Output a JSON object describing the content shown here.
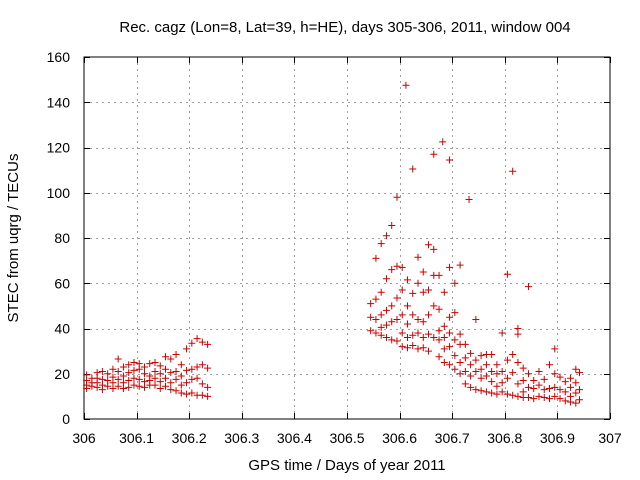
{
  "chart_data": {
    "type": "scatter",
    "title": "Rec. cagz (Lon=8, Lat=39, h=HE), days 305-306, 2011, window 004",
    "xlabel": "GPS time / Days of year 2011",
    "ylabel": "STEC from uqrg / TECUs",
    "xlim": [
      306,
      307
    ],
    "ylim": [
      0,
      160
    ],
    "xticks": [
      306,
      306.1,
      306.2,
      306.3,
      306.4,
      306.5,
      306.6,
      306.7,
      306.8,
      306.9,
      307
    ],
    "xtick_labels": [
      "306",
      "306.1",
      "306.2",
      "306.3",
      "306.4",
      "306.5",
      "306.6",
      "306.7",
      "306.8",
      "306.9",
      "307"
    ],
    "yticks": [
      0,
      20,
      40,
      60,
      80,
      100,
      120,
      140,
      160
    ],
    "ytick_labels": [
      "0",
      "20",
      "40",
      "60",
      "80",
      "100",
      "120",
      "140",
      "160"
    ],
    "grid": true,
    "marker": "plus",
    "color": "#cc0000",
    "series": [
      {
        "name": "STEC",
        "points": [
          [
            306.005,
            19.5
          ],
          [
            306.005,
            17.0
          ],
          [
            306.005,
            15.0
          ],
          [
            306.005,
            13.5
          ],
          [
            306.015,
            18.0
          ],
          [
            306.015,
            16.0
          ],
          [
            306.015,
            14.5
          ],
          [
            306.025,
            20.5
          ],
          [
            306.025,
            18.0
          ],
          [
            306.025,
            16.0
          ],
          [
            306.025,
            14.0
          ],
          [
            306.035,
            21.0
          ],
          [
            306.035,
            17.5
          ],
          [
            306.035,
            15.0
          ],
          [
            306.035,
            13.0
          ],
          [
            306.045,
            20.0
          ],
          [
            306.045,
            17.0
          ],
          [
            306.045,
            14.5
          ],
          [
            306.055,
            22.0
          ],
          [
            306.055,
            18.5
          ],
          [
            306.055,
            16.0
          ],
          [
            306.055,
            13.5
          ],
          [
            306.065,
            26.5
          ],
          [
            306.065,
            21.0
          ],
          [
            306.065,
            17.5
          ],
          [
            306.065,
            14.5
          ],
          [
            306.075,
            23.0
          ],
          [
            306.075,
            19.0
          ],
          [
            306.075,
            16.0
          ],
          [
            306.075,
            13.5
          ],
          [
            306.085,
            24.0
          ],
          [
            306.085,
            20.5
          ],
          [
            306.085,
            17.0
          ],
          [
            306.085,
            14.0
          ],
          [
            306.095,
            25.0
          ],
          [
            306.095,
            21.5
          ],
          [
            306.095,
            18.0
          ],
          [
            306.095,
            15.0
          ],
          [
            306.105,
            24.5
          ],
          [
            306.105,
            22.0
          ],
          [
            306.105,
            17.5
          ],
          [
            306.105,
            14.5
          ],
          [
            306.115,
            23.0
          ],
          [
            306.115,
            20.0
          ],
          [
            306.115,
            16.5
          ],
          [
            306.115,
            14.0
          ],
          [
            306.125,
            24.5
          ],
          [
            306.125,
            19.0
          ],
          [
            306.125,
            17.0
          ],
          [
            306.125,
            15.0
          ],
          [
            306.135,
            25.0
          ],
          [
            306.135,
            21.0
          ],
          [
            306.135,
            18.0
          ],
          [
            306.135,
            15.0
          ],
          [
            306.145,
            23.5
          ],
          [
            306.145,
            20.0
          ],
          [
            306.145,
            16.5
          ],
          [
            306.145,
            13.5
          ],
          [
            306.155,
            27.5
          ],
          [
            306.155,
            22.0
          ],
          [
            306.155,
            18.0
          ],
          [
            306.155,
            14.5
          ],
          [
            306.165,
            26.5
          ],
          [
            306.165,
            20.5
          ],
          [
            306.165,
            16.0
          ],
          [
            306.165,
            13.0
          ],
          [
            306.175,
            28.5
          ],
          [
            306.175,
            21.0
          ],
          [
            306.175,
            17.5
          ],
          [
            306.175,
            12.5
          ],
          [
            306.185,
            24.0
          ],
          [
            306.185,
            19.0
          ],
          [
            306.185,
            15.0
          ],
          [
            306.185,
            11.5
          ],
          [
            306.195,
            31.0
          ],
          [
            306.195,
            21.5
          ],
          [
            306.195,
            16.0
          ],
          [
            306.195,
            11.0
          ],
          [
            306.205,
            33.5
          ],
          [
            306.205,
            22.0
          ],
          [
            306.205,
            17.5
          ],
          [
            306.205,
            11.5
          ],
          [
            306.215,
            35.5
          ],
          [
            306.215,
            23.0
          ],
          [
            306.215,
            18.0
          ],
          [
            306.215,
            10.5
          ],
          [
            306.225,
            34.0
          ],
          [
            306.225,
            24.0
          ],
          [
            306.225,
            15.5
          ],
          [
            306.225,
            10.5
          ],
          [
            306.235,
            33.0
          ],
          [
            306.235,
            22.5
          ],
          [
            306.235,
            14.0
          ],
          [
            306.235,
            10.0
          ],
          [
            306.545,
            51.0
          ],
          [
            306.545,
            45.0
          ],
          [
            306.545,
            39.0
          ],
          [
            306.555,
            71.0
          ],
          [
            306.555,
            53.0
          ],
          [
            306.555,
            44.0
          ],
          [
            306.555,
            38.0
          ],
          [
            306.565,
            77.5
          ],
          [
            306.565,
            56.0
          ],
          [
            306.565,
            46.0
          ],
          [
            306.565,
            40.5
          ],
          [
            306.565,
            37.0
          ],
          [
            306.575,
            81.0
          ],
          [
            306.575,
            62.0
          ],
          [
            306.575,
            48.0
          ],
          [
            306.575,
            41.5
          ],
          [
            306.575,
            36.0
          ],
          [
            306.585,
            85.5
          ],
          [
            306.585,
            66.0
          ],
          [
            306.585,
            50.0
          ],
          [
            306.585,
            43.0
          ],
          [
            306.585,
            35.0
          ],
          [
            306.595,
            98.0
          ],
          [
            306.595,
            67.5
          ],
          [
            306.595,
            53.5
          ],
          [
            306.595,
            44.0
          ],
          [
            306.595,
            34.5
          ],
          [
            306.605,
            67.0
          ],
          [
            306.605,
            57.0
          ],
          [
            306.605,
            46.0
          ],
          [
            306.605,
            38.0
          ],
          [
            306.605,
            32.0
          ],
          [
            306.612,
            147.5
          ],
          [
            306.615,
            61.5
          ],
          [
            306.615,
            50.0
          ],
          [
            306.615,
            42.0
          ],
          [
            306.615,
            36.0
          ],
          [
            306.615,
            31.5
          ],
          [
            306.625,
            110.5
          ],
          [
            306.625,
            55.5
          ],
          [
            306.625,
            46.0
          ],
          [
            306.625,
            37.0
          ],
          [
            306.625,
            32.5
          ],
          [
            306.635,
            71.5
          ],
          [
            306.635,
            60.0
          ],
          [
            306.635,
            44.0
          ],
          [
            306.635,
            38.0
          ],
          [
            306.635,
            31.0
          ],
          [
            306.645,
            65.0
          ],
          [
            306.645,
            56.0
          ],
          [
            306.645,
            43.0
          ],
          [
            306.645,
            36.0
          ],
          [
            306.645,
            31.5
          ],
          [
            306.655,
            77.0
          ],
          [
            306.655,
            57.0
          ],
          [
            306.655,
            46.0
          ],
          [
            306.655,
            37.5
          ],
          [
            306.655,
            30.0
          ],
          [
            306.665,
            117.0
          ],
          [
            306.665,
            75.0
          ],
          [
            306.665,
            63.5
          ],
          [
            306.665,
            50.0
          ],
          [
            306.665,
            36.0
          ],
          [
            306.675,
            63.5
          ],
          [
            306.675,
            48.5
          ],
          [
            306.675,
            39.0
          ],
          [
            306.675,
            35.0
          ],
          [
            306.675,
            27.5
          ],
          [
            306.682,
            122.5
          ],
          [
            306.685,
            56.0
          ],
          [
            306.685,
            41.0
          ],
          [
            306.685,
            36.0
          ],
          [
            306.685,
            31.0
          ],
          [
            306.685,
            25.0
          ],
          [
            306.695,
            114.5
          ],
          [
            306.695,
            67.0
          ],
          [
            306.695,
            45.0
          ],
          [
            306.695,
            38.0
          ],
          [
            306.695,
            32.0
          ],
          [
            306.695,
            24.0
          ],
          [
            306.705,
            60.0
          ],
          [
            306.705,
            47.0
          ],
          [
            306.705,
            35.0
          ],
          [
            306.705,
            28.0
          ],
          [
            306.705,
            22.0
          ],
          [
            306.715,
            68.0
          ],
          [
            306.715,
            37.5
          ],
          [
            306.715,
            33.0
          ],
          [
            306.715,
            25.0
          ],
          [
            306.715,
            20.0
          ],
          [
            306.725,
            33.0
          ],
          [
            306.725,
            27.0
          ],
          [
            306.725,
            21.0
          ],
          [
            306.725,
            15.5
          ],
          [
            306.732,
            97.0
          ],
          [
            306.735,
            29.0
          ],
          [
            306.735,
            24.0
          ],
          [
            306.735,
            19.0
          ],
          [
            306.735,
            14.0
          ],
          [
            306.745,
            44.0
          ],
          [
            306.745,
            26.0
          ],
          [
            306.745,
            21.0
          ],
          [
            306.745,
            13.0
          ],
          [
            306.755,
            28.0
          ],
          [
            306.755,
            22.0
          ],
          [
            306.755,
            18.0
          ],
          [
            306.755,
            12.5
          ],
          [
            306.765,
            28.5
          ],
          [
            306.765,
            24.0
          ],
          [
            306.765,
            19.0
          ],
          [
            306.765,
            12.0
          ],
          [
            306.775,
            28.5
          ],
          [
            306.775,
            21.0
          ],
          [
            306.775,
            16.5
          ],
          [
            306.775,
            11.5
          ],
          [
            306.785,
            24.0
          ],
          [
            306.785,
            20.0
          ],
          [
            306.785,
            14.5
          ],
          [
            306.785,
            11.0
          ],
          [
            306.795,
            38.0
          ],
          [
            306.795,
            21.0
          ],
          [
            306.795,
            16.0
          ],
          [
            306.795,
            12.0
          ],
          [
            306.805,
            64.0
          ],
          [
            306.805,
            26.0
          ],
          [
            306.805,
            18.0
          ],
          [
            306.805,
            11.0
          ],
          [
            306.815,
            109.5
          ],
          [
            306.815,
            28.5
          ],
          [
            306.815,
            20.5
          ],
          [
            306.815,
            10.5
          ],
          [
            306.825,
            40.0
          ],
          [
            306.825,
            37.5
          ],
          [
            306.825,
            25.0
          ],
          [
            306.825,
            15.5
          ],
          [
            306.825,
            10.0
          ],
          [
            306.835,
            22.5
          ],
          [
            306.835,
            17.0
          ],
          [
            306.835,
            12.0
          ],
          [
            306.835,
            9.5
          ],
          [
            306.845,
            58.5
          ],
          [
            306.845,
            20.0
          ],
          [
            306.845,
            14.0
          ],
          [
            306.845,
            9.5
          ],
          [
            306.855,
            17.0
          ],
          [
            306.855,
            13.5
          ],
          [
            306.855,
            9.0
          ],
          [
            306.865,
            21.0
          ],
          [
            306.865,
            15.0
          ],
          [
            306.865,
            10.0
          ],
          [
            306.875,
            17.5
          ],
          [
            306.875,
            13.0
          ],
          [
            306.875,
            9.5
          ],
          [
            306.885,
            24.0
          ],
          [
            306.885,
            13.5
          ],
          [
            306.885,
            9.0
          ],
          [
            306.895,
            31.0
          ],
          [
            306.895,
            20.0
          ],
          [
            306.895,
            14.0
          ],
          [
            306.895,
            10.0
          ],
          [
            306.905,
            18.5
          ],
          [
            306.905,
            13.0
          ],
          [
            306.905,
            9.0
          ],
          [
            306.915,
            16.5
          ],
          [
            306.915,
            12.0
          ],
          [
            306.915,
            8.0
          ],
          [
            306.925,
            18.0
          ],
          [
            306.925,
            14.0
          ],
          [
            306.925,
            10.0
          ],
          [
            306.925,
            7.5
          ],
          [
            306.935,
            22.0
          ],
          [
            306.935,
            16.0
          ],
          [
            306.935,
            11.5
          ],
          [
            306.935,
            7.0
          ],
          [
            306.942,
            20.5
          ],
          [
            306.942,
            13.0
          ],
          [
            306.942,
            8.5
          ]
        ]
      }
    ]
  }
}
